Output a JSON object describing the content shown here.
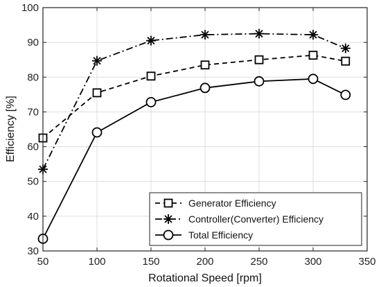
{
  "chart_data": {
    "type": "line",
    "xlabel": "Rotational Speed [rpm]",
    "ylabel": "Efficiency [%]",
    "xlim": [
      50,
      350
    ],
    "ylim": [
      30,
      100
    ],
    "xticks": [
      50,
      100,
      150,
      200,
      250,
      300,
      350
    ],
    "yticks": [
      30,
      40,
      50,
      60,
      70,
      80,
      90,
      100
    ],
    "grid": true,
    "legend_position": "bottom-right",
    "series": [
      {
        "name": "Generator Efficiency",
        "line_style": "dashed",
        "marker": "square",
        "color": "#000000",
        "x": [
          50,
          100,
          150,
          200,
          250,
          300,
          330
        ],
        "y": [
          62.5,
          75.5,
          80.3,
          83.5,
          85.0,
          86.3,
          84.6
        ]
      },
      {
        "name": "Controller(Converter) Efficiency",
        "line_style": "dash-dot",
        "marker": "asterisk",
        "color": "#000000",
        "x": [
          50,
          100,
          150,
          200,
          250,
          300,
          330
        ],
        "y": [
          53.5,
          84.7,
          90.5,
          92.2,
          92.5,
          92.2,
          88.3
        ]
      },
      {
        "name": "Total Efficiency",
        "line_style": "solid",
        "marker": "circle",
        "color": "#000000",
        "x": [
          50,
          100,
          150,
          200,
          250,
          300,
          330
        ],
        "y": [
          33.5,
          64.1,
          72.8,
          76.9,
          78.8,
          79.5,
          74.9
        ]
      }
    ]
  }
}
